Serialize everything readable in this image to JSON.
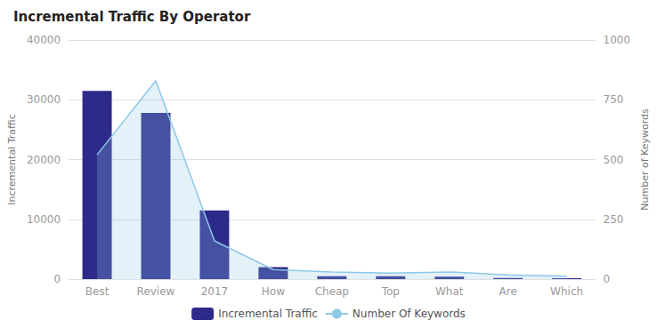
{
  "chart_data": {
    "type": "bar",
    "title": "Incremental Traffic By Operator",
    "categories": [
      "Best",
      "Review",
      "2017",
      "How",
      "Cheap",
      "Top",
      "What",
      "Are",
      "Which"
    ],
    "series": [
      {
        "name": "Incremental Traffic",
        "type": "bar",
        "color": "#2e2a8a",
        "values": [
          31500,
          27800,
          11500,
          2000,
          500,
          500,
          400,
          200,
          150
        ]
      },
      {
        "name": "Number Of Keywords",
        "type": "line",
        "axis": "y2",
        "color": "#8ec8e8",
        "values": [
          520,
          830,
          160,
          40,
          30,
          25,
          30,
          18,
          12
        ]
      }
    ],
    "ylabel": "Incremental Traffic",
    "y2label": "Number of Keywords",
    "ylim": [
      0,
      40000
    ],
    "yticks": [
      0,
      10000,
      20000,
      30000,
      40000
    ],
    "y2lim": [
      0,
      1000
    ],
    "y2ticks": [
      0,
      250,
      500,
      750,
      1000
    ],
    "grid": true,
    "legend": "bottom"
  }
}
